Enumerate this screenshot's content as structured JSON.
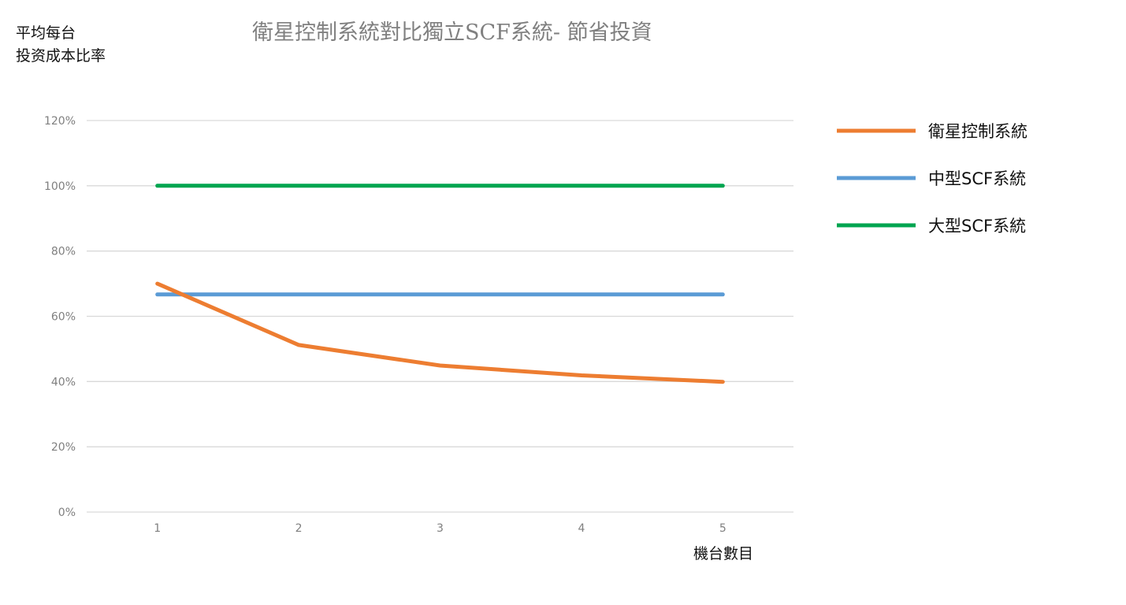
{
  "chart_data": {
    "type": "line",
    "title": "衛星控制系統對比獨立SCF系統- 節省投資",
    "ylabel_lines": [
      "平均每台",
      "投资成本比率"
    ],
    "xlabel": "機台數目",
    "x": [
      1,
      2,
      3,
      4,
      5
    ],
    "y_ticks": [
      "0%",
      "20%",
      "40%",
      "60%",
      "80%",
      "100%",
      "120%"
    ],
    "ylim": [
      0,
      1.2
    ],
    "grid": true,
    "legend_position": "right",
    "series": [
      {
        "name": "衛星控制系統",
        "color": "#ED7D31",
        "values": [
          0.7,
          0.512,
          0.449,
          0.419,
          0.399
        ]
      },
      {
        "name": "中型SCF系統",
        "color": "#5B9BD5",
        "values": [
          0.667,
          0.667,
          0.667,
          0.667,
          0.667
        ]
      },
      {
        "name": "大型SCF系統",
        "color": "#00A550",
        "values": [
          1.0,
          1.0,
          1.0,
          1.0,
          1.0
        ]
      }
    ]
  }
}
